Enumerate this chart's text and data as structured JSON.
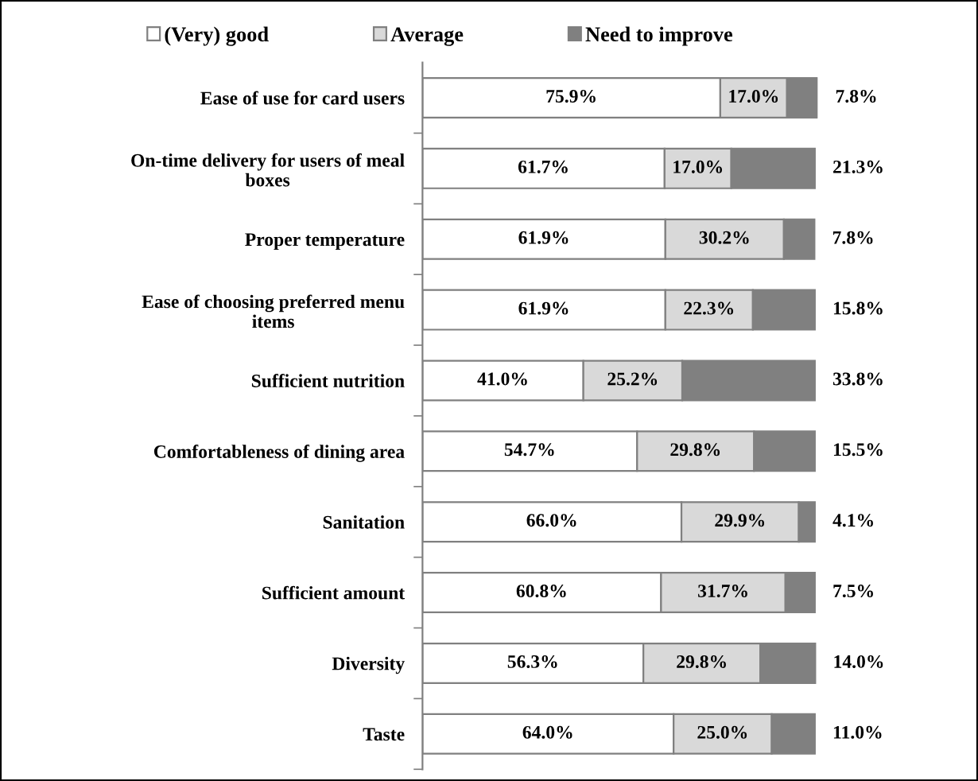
{
  "chart_data": {
    "type": "bar",
    "orientation": "horizontal",
    "stacked": true,
    "legend": "top",
    "grid": false,
    "tick_labels": "y",
    "categories": [
      "Ease of use for card users",
      "On-time delivery for users of meal\nboxes",
      "Proper temperature",
      "Ease of choosing preferred menu\nitems",
      "Sufficient nutrition",
      "Comfortableness of dining area",
      "Sanitation",
      "Sufficient amount",
      "Diversity",
      "Taste"
    ],
    "series": [
      {
        "name": "(Very) good",
        "color": "#ffffff",
        "values": [
          75.9,
          61.7,
          61.9,
          61.9,
          41.0,
          54.7,
          66.0,
          60.8,
          56.3,
          64.0
        ],
        "value_labels": [
          "75.9%",
          "61.7%",
          "61.9%",
          "61.9%",
          "41.0%",
          "54.7%",
          "66.0%",
          "60.8%",
          "56.3%",
          "64.0%"
        ]
      },
      {
        "name": "Average",
        "color": "#d9d9d9",
        "values": [
          17.0,
          17.0,
          30.2,
          22.3,
          25.2,
          29.8,
          29.9,
          31.7,
          29.8,
          25.0
        ],
        "value_labels": [
          "17.0%",
          "17.0%",
          "30.2%",
          "22.3%",
          "25.2%",
          "29.8%",
          "29.9%",
          "31.7%",
          "29.8%",
          "25.0%"
        ]
      },
      {
        "name": "Need to improve",
        "color": "#808080",
        "values": [
          7.8,
          21.3,
          7.8,
          15.8,
          33.8,
          15.5,
          4.1,
          7.5,
          14.0,
          11.0
        ],
        "value_labels": [
          "7.8%",
          "21.3%",
          "7.8%",
          "15.8%",
          "33.8%",
          "15.5%",
          "4.1%",
          "7.5%",
          "14.0%",
          "11.0%"
        ]
      }
    ]
  }
}
